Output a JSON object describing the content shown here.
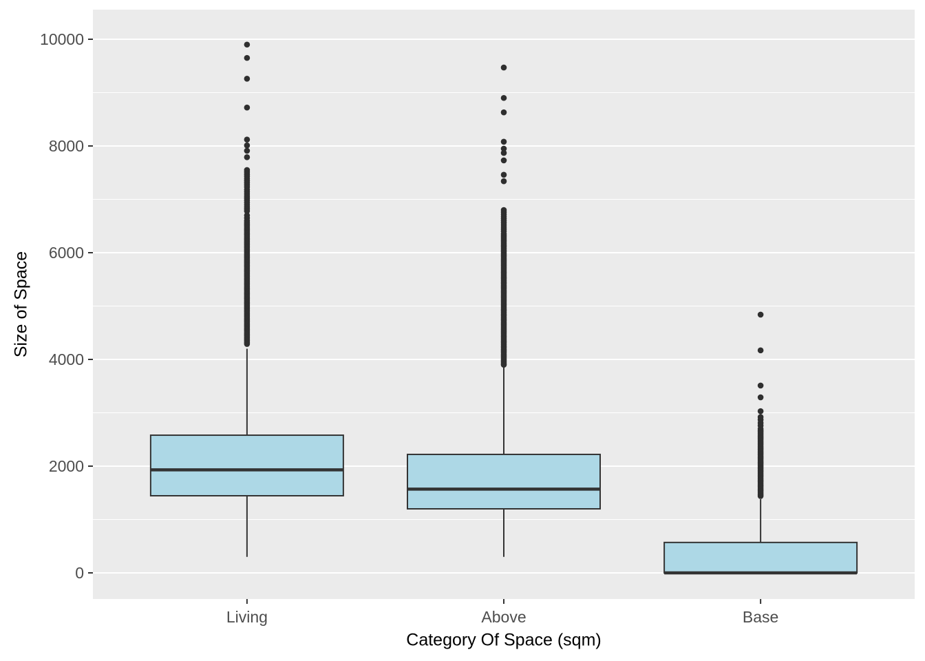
{
  "chart_data": {
    "type": "boxplot",
    "title": "",
    "xlabel": "Category Of Space (sqm)",
    "ylabel": "Size of Space",
    "categories": [
      "Living",
      "Above",
      "Base"
    ],
    "y_ticks": [
      0,
      2000,
      4000,
      6000,
      8000,
      10000
    ],
    "y_minor_ticks": [
      1000,
      3000,
      5000,
      7000,
      9000
    ],
    "ylim": [
      -500,
      10560
    ],
    "grid": true,
    "legend_position": "none",
    "colors": {
      "panel_bg": "#EBEBEB",
      "grid": "#FFFFFF",
      "box_fill": "#ADD8E6",
      "box_stroke": "#333333",
      "outlier": "#2F2F2F",
      "tick_mark": "#333333",
      "tick_label": "#4D4D4D",
      "axis_title": "#000000"
    },
    "series": [
      {
        "name": "Living",
        "q1": 1445,
        "median": 1930,
        "q3": 2580,
        "whisker_low": 300,
        "whisker_high": 4200,
        "outliers": [
          9900,
          9650,
          9260,
          8720,
          8120,
          8010,
          7910,
          7790,
          7550,
          7510,
          7470,
          7430,
          7390,
          7350,
          7310,
          7270,
          7230,
          7180,
          7140,
          7100,
          7060,
          7020,
          6980,
          6940,
          6900,
          6860,
          6820,
          6780,
          6700,
          6650,
          6600,
          6570,
          6540,
          6510,
          6480,
          6450,
          6420,
          6390,
          6360,
          6330,
          6300,
          6270,
          6240,
          6210,
          6180,
          6150,
          6120,
          6090,
          6060,
          6030,
          6000,
          5970,
          5940,
          5910,
          5880,
          5850,
          5820,
          5790,
          5760,
          5730,
          5700,
          5670,
          5640,
          5610,
          5580,
          5550,
          5520,
          5490,
          5460,
          5430,
          5400,
          5370,
          5340,
          5310,
          5280,
          5250,
          5220,
          5190,
          5160,
          5130,
          5100,
          5070,
          5040,
          5010,
          4980,
          4950,
          4920,
          4890,
          4860,
          4830,
          4800,
          4770,
          4740,
          4710,
          4680,
          4650,
          4620,
          4590,
          4560,
          4530,
          4500,
          4470,
          4440,
          4410,
          4380,
          4350,
          4320,
          4290
        ]
      },
      {
        "name": "Above",
        "q1": 1200,
        "median": 1570,
        "q3": 2220,
        "whisker_low": 300,
        "whisker_high": 3850,
        "outliers": [
          9470,
          8900,
          8630,
          8080,
          7950,
          7870,
          7730,
          7460,
          7340,
          6800,
          6760,
          6720,
          6680,
          6640,
          6600,
          6560,
          6520,
          6480,
          6440,
          6400,
          6350,
          6320,
          6290,
          6260,
          6230,
          6200,
          6170,
          6140,
          6110,
          6080,
          6050,
          6020,
          5990,
          5960,
          5930,
          5900,
          5870,
          5840,
          5810,
          5780,
          5750,
          5720,
          5690,
          5660,
          5630,
          5600,
          5570,
          5540,
          5510,
          5480,
          5450,
          5420,
          5390,
          5360,
          5330,
          5300,
          5270,
          5240,
          5210,
          5180,
          5150,
          5120,
          5090,
          5060,
          5030,
          5000,
          4970,
          4940,
          4910,
          4880,
          4850,
          4820,
          4790,
          4760,
          4730,
          4700,
          4670,
          4640,
          4610,
          4580,
          4550,
          4520,
          4490,
          4460,
          4430,
          4400,
          4370,
          4340,
          4310,
          4280,
          4250,
          4220,
          4190,
          4160,
          4130,
          4100,
          4070,
          4040,
          4010,
          3980,
          3950,
          3920,
          3900
        ]
      },
      {
        "name": "Base",
        "q1": 0,
        "median": 0,
        "q3": 570,
        "whisker_low": 0,
        "whisker_high": 1380,
        "outliers": [
          4840,
          4170,
          3510,
          3290,
          3030,
          2920,
          2870,
          2810,
          2760,
          2700,
          2670,
          2640,
          2610,
          2580,
          2550,
          2520,
          2490,
          2460,
          2430,
          2400,
          2370,
          2340,
          2310,
          2280,
          2250,
          2220,
          2190,
          2160,
          2130,
          2100,
          2070,
          2040,
          2010,
          1980,
          1950,
          1920,
          1890,
          1860,
          1830,
          1800,
          1770,
          1740,
          1710,
          1680,
          1650,
          1620,
          1590,
          1560,
          1530,
          1500,
          1470,
          1440
        ]
      }
    ]
  }
}
